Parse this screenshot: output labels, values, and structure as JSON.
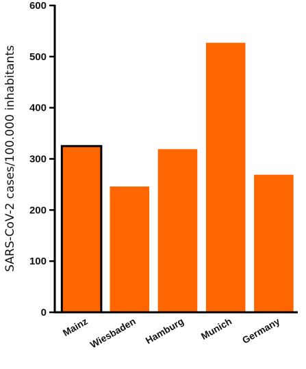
{
  "chart_data": {
    "type": "bar",
    "categories": [
      "Mainz",
      "Wiesbaden",
      "Hamburg",
      "Munich",
      "Germany"
    ],
    "values": [
      325,
      246,
      319,
      527,
      269
    ],
    "highlighted_category": "Mainz",
    "ylabel": "SARS-CoV-2  cases/100.000 inhabitants",
    "xlabel": "",
    "title": "",
    "ylim": [
      0,
      600
    ],
    "yticks": [
      0,
      100,
      200,
      300,
      400,
      500,
      600
    ],
    "grid": false,
    "bar_color": "#FF6600",
    "highlight_outline_color": "#000000"
  }
}
